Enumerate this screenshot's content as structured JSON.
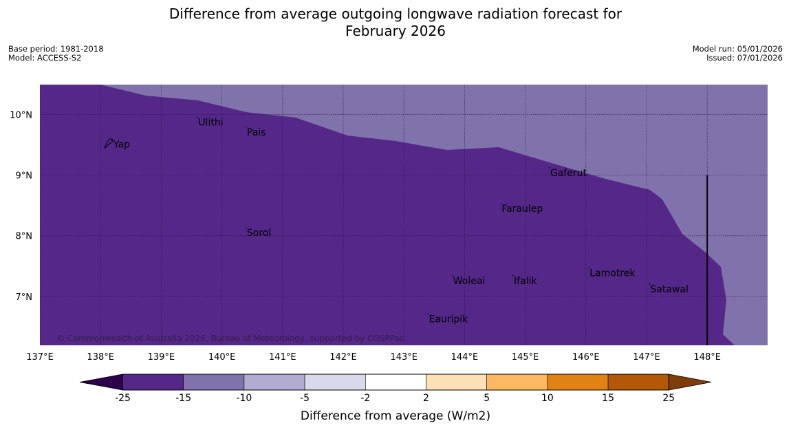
{
  "title": {
    "line1": "Difference from average outgoing longwave radiation forecast for",
    "line2": "February 2026"
  },
  "meta": {
    "base_period": "Base period: 1981-2018",
    "model": "Model: ACCESS-S2",
    "model_run": "Model run: 05/01/2026",
    "issued": "Issued: 07/01/2026"
  },
  "copyright": "© Commonwealth of Australia 2026, Bureau of Meteorology, supported by COSPPac",
  "map": {
    "lon_range": [
      137.0,
      149.0
    ],
    "lat_range": [
      6.2,
      10.5
    ],
    "lon_ticks": [
      137,
      138,
      139,
      140,
      141,
      142,
      143,
      144,
      145,
      146,
      147,
      148
    ],
    "lon_tick_labels": [
      "137°E",
      "138°E",
      "139°E",
      "140°E",
      "141°E",
      "142°E",
      "143°E",
      "144°E",
      "145°E",
      "146°E",
      "147°E",
      "148°E"
    ],
    "lat_ticks": [
      10,
      9,
      8,
      7
    ],
    "lat_tick_labels": [
      "10°N",
      "9°N",
      "8°N",
      "7°N"
    ],
    "colors": {
      "dark_purple": "#542788",
      "mid_purple": "#8073ac"
    },
    "boundary_line_lon": 148.0,
    "places": [
      {
        "name": "Yap",
        "lon": 138.2,
        "lat": 9.5
      },
      {
        "name": "Ulithi",
        "lon": 139.6,
        "lat": 9.86
      },
      {
        "name": "Pais",
        "lon": 140.4,
        "lat": 9.7
      },
      {
        "name": "Gaferut",
        "lon": 145.4,
        "lat": 9.03
      },
      {
        "name": "Faraulep",
        "lon": 144.6,
        "lat": 8.44
      },
      {
        "name": "Sorol",
        "lon": 140.4,
        "lat": 8.04
      },
      {
        "name": "Lamotrek",
        "lon": 146.05,
        "lat": 7.38
      },
      {
        "name": "Woleai",
        "lon": 143.8,
        "lat": 7.25
      },
      {
        "name": "Ifalik",
        "lon": 144.8,
        "lat": 7.25
      },
      {
        "name": "Satawal",
        "lon": 147.05,
        "lat": 7.11
      },
      {
        "name": "Eauripik",
        "lon": 143.4,
        "lat": 6.62
      }
    ]
  },
  "colorbar": {
    "title": "Difference from average (W/m2)",
    "tick_labels": [
      "-25",
      "-15",
      "-10",
      "-5",
      "-2",
      "2",
      "5",
      "10",
      "15",
      "25"
    ],
    "colors": [
      "#542788",
      "#8073ac",
      "#b2abd2",
      "#d8daeb",
      "#ffffff",
      "#fee0b6",
      "#fdb863",
      "#e08214",
      "#b35806"
    ],
    "extend_low_color": "#2d004b",
    "extend_high_color": "#7f3b08"
  }
}
